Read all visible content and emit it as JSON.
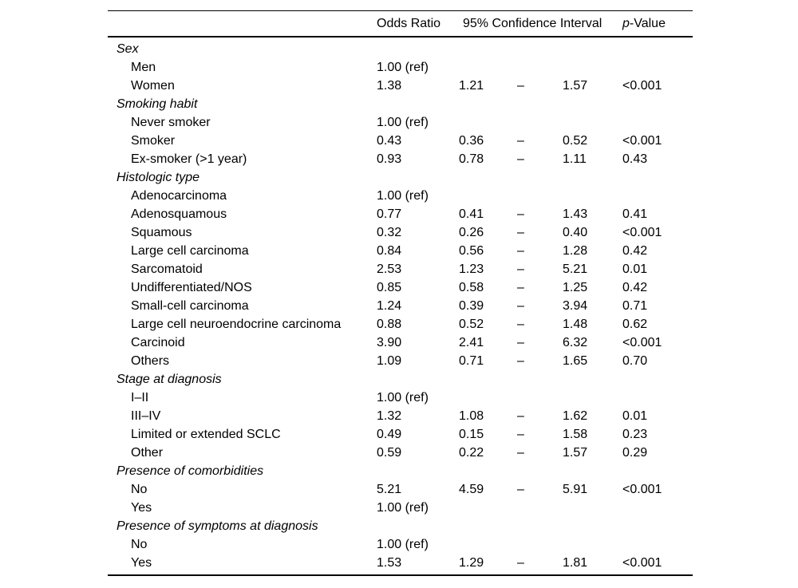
{
  "table": {
    "header": {
      "odds_ratio": "Odds Ratio",
      "ci": "95% Confidence Interval",
      "p_italic": "p",
      "p_rest": "-Value"
    },
    "sections": [
      {
        "label": "Sex",
        "rows": [
          {
            "label": "Men",
            "or": "1.00 (ref)",
            "ci_low": "",
            "dash": "",
            "ci_high": "",
            "p": ""
          },
          {
            "label": "Women",
            "or": "1.38",
            "ci_low": "1.21",
            "dash": "–",
            "ci_high": "1.57",
            "p": "<0.001"
          }
        ]
      },
      {
        "label": "Smoking habit",
        "rows": [
          {
            "label": "Never smoker",
            "or": "1.00 (ref)",
            "ci_low": "",
            "dash": "",
            "ci_high": "",
            "p": ""
          },
          {
            "label": "Smoker",
            "or": "0.43",
            "ci_low": "0.36",
            "dash": "–",
            "ci_high": "0.52",
            "p": "<0.001"
          },
          {
            "label": "Ex-smoker (>1 year)",
            "or": "0.93",
            "ci_low": "0.78",
            "dash": "–",
            "ci_high": "1.11",
            "p": "0.43"
          }
        ]
      },
      {
        "label": "Histologic type",
        "rows": [
          {
            "label": "Adenocarcinoma",
            "or": "1.00 (ref)",
            "ci_low": "",
            "dash": "",
            "ci_high": "",
            "p": ""
          },
          {
            "label": "Adenosquamous",
            "or": "0.77",
            "ci_low": "0.41",
            "dash": "–",
            "ci_high": "1.43",
            "p": "0.41"
          },
          {
            "label": "Squamous",
            "or": "0.32",
            "ci_low": "0.26",
            "dash": "–",
            "ci_high": "0.40",
            "p": "<0.001"
          },
          {
            "label": "Large cell carcinoma",
            "or": "0.84",
            "ci_low": "0.56",
            "dash": "–",
            "ci_high": "1.28",
            "p": "0.42"
          },
          {
            "label": "Sarcomatoid",
            "or": "2.53",
            "ci_low": "1.23",
            "dash": "–",
            "ci_high": "5.21",
            "p": "0.01"
          },
          {
            "label": "Undifferentiated/NOS",
            "or": "0.85",
            "ci_low": "0.58",
            "dash": "–",
            "ci_high": "1.25",
            "p": "0.42"
          },
          {
            "label": "Small-cell carcinoma",
            "or": "1.24",
            "ci_low": "0.39",
            "dash": "–",
            "ci_high": "3.94",
            "p": "0.71"
          },
          {
            "label": "Large cell neuroendocrine carcinoma",
            "or": "0.88",
            "ci_low": "0.52",
            "dash": "–",
            "ci_high": "1.48",
            "p": "0.62"
          },
          {
            "label": "Carcinoid",
            "or": "3.90",
            "ci_low": "2.41",
            "dash": "–",
            "ci_high": "6.32",
            "p": "<0.001"
          },
          {
            "label": "Others",
            "or": "1.09",
            "ci_low": "0.71",
            "dash": "–",
            "ci_high": "1.65",
            "p": "0.70"
          }
        ]
      },
      {
        "label": "Stage at diagnosis",
        "rows": [
          {
            "label": "I–II",
            "or": "1.00 (ref)",
            "ci_low": "",
            "dash": "",
            "ci_high": "",
            "p": ""
          },
          {
            "label": "III–IV",
            "or": "1.32",
            "ci_low": "1.08",
            "dash": "–",
            "ci_high": "1.62",
            "p": "0.01"
          },
          {
            "label": "Limited or extended SCLC",
            "or": "0.49",
            "ci_low": "0.15",
            "dash": "–",
            "ci_high": "1.58",
            "p": "0.23"
          },
          {
            "label": "Other",
            "or": "0.59",
            "ci_low": "0.22",
            "dash": "–",
            "ci_high": "1.57",
            "p": "0.29"
          }
        ]
      },
      {
        "label": "Presence of comorbidities",
        "rows": [
          {
            "label": "No",
            "or": "5.21",
            "ci_low": "4.59",
            "dash": "–",
            "ci_high": "5.91",
            "p": "<0.001"
          },
          {
            "label": "Yes",
            "or": "1.00 (ref)",
            "ci_low": "",
            "dash": "",
            "ci_high": "",
            "p": ""
          }
        ]
      },
      {
        "label": "Presence of symptoms at diagnosis",
        "rows": [
          {
            "label": "No",
            "or": "1.00 (ref)",
            "ci_low": "",
            "dash": "",
            "ci_high": "",
            "p": ""
          },
          {
            "label": "Yes",
            "or": "1.53",
            "ci_low": "1.29",
            "dash": "–",
            "ci_high": "1.81",
            "p": "<0.001"
          }
        ]
      }
    ]
  }
}
